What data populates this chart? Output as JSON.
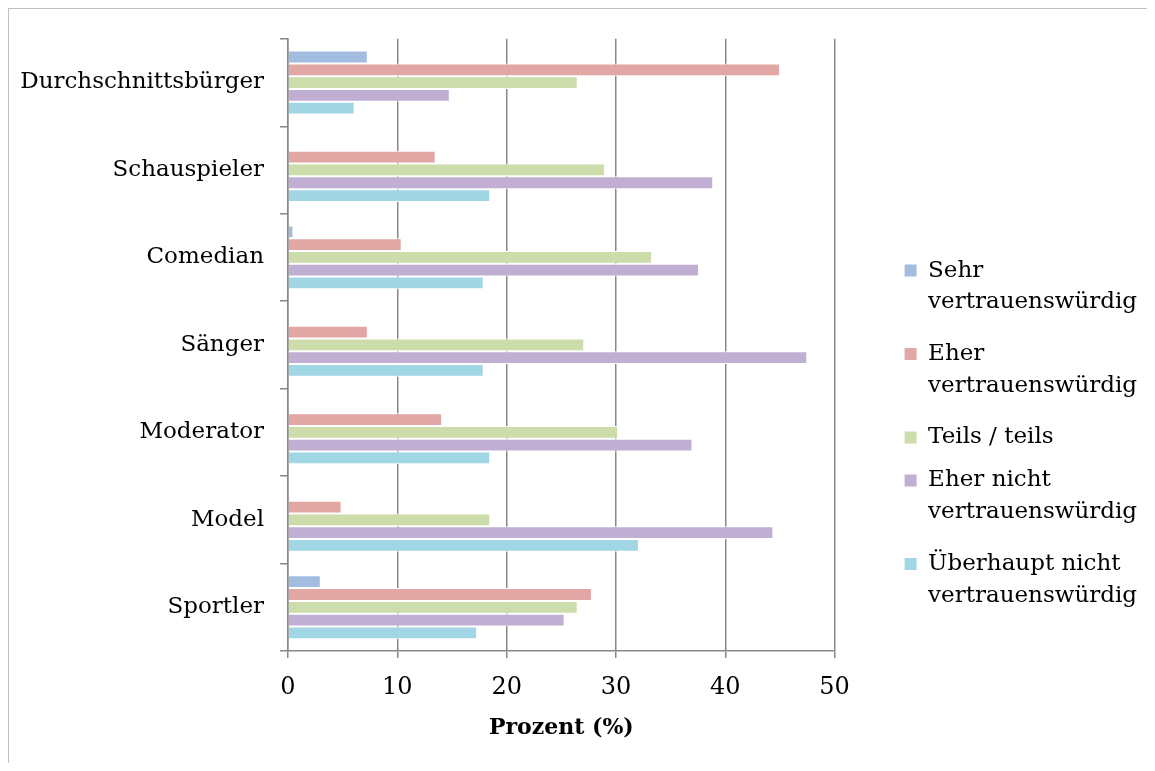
{
  "chart_data": {
    "type": "bar",
    "orientation": "horizontal",
    "categories": [
      "Durchschnittsbürger",
      "Schauspieler",
      "Comedian",
      "Sänger",
      "Moderator",
      "Model",
      "Sportler"
    ],
    "xlabel": "Prozent (%)",
    "xlim": [
      0,
      50
    ],
    "xticks": [
      0,
      10,
      20,
      30,
      40,
      50
    ],
    "grid": "x",
    "legend": "right",
    "series": [
      {
        "name": "Sehr vertrauenswürdig",
        "color": "#a3bde0",
        "values": [
          7.3,
          null,
          0.5,
          null,
          null,
          null,
          3.0
        ]
      },
      {
        "name": "Eher vertrauenswürdig",
        "color": "#e2a6a5",
        "values": [
          45.0,
          13.5,
          10.4,
          7.3,
          14.1,
          4.9,
          27.8
        ]
      },
      {
        "name": "Teils / teils",
        "color": "#cddcab",
        "values": [
          26.5,
          29.0,
          33.3,
          27.1,
          30.2,
          18.5,
          26.5
        ]
      },
      {
        "name": "Eher nicht vertrauenswürdig",
        "color": "#c0afd3",
        "values": [
          14.8,
          38.9,
          37.6,
          47.5,
          37.0,
          44.4,
          25.3
        ]
      },
      {
        "name": "Überhaupt nicht vertrauenswürdig",
        "color": "#a1d6e4",
        "values": [
          6.1,
          18.5,
          17.9,
          17.9,
          18.5,
          32.1,
          17.3
        ]
      }
    ]
  }
}
